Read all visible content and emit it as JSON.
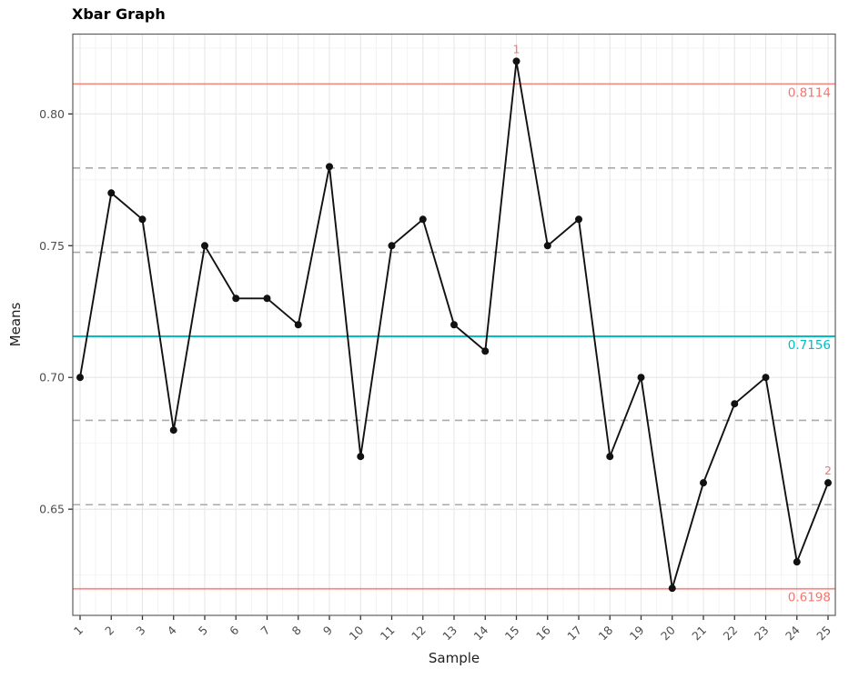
{
  "title": "Xbar Graph",
  "chart_data": {
    "type": "line",
    "subtype": "xbar-control-chart",
    "title": "Xbar Graph",
    "xlabel": "Sample",
    "ylabel": "Means",
    "x_ticks": [
      "1",
      "2",
      "3",
      "4",
      "5",
      "6",
      "7",
      "8",
      "9",
      "10",
      "11",
      "12",
      "13",
      "14",
      "15",
      "16",
      "17",
      "18",
      "19",
      "20",
      "21",
      "22",
      "23",
      "24",
      "25"
    ],
    "x": [
      1,
      2,
      3,
      4,
      5,
      6,
      7,
      8,
      9,
      10,
      11,
      12,
      13,
      14,
      15,
      16,
      17,
      18,
      19,
      20,
      21,
      22,
      23,
      24,
      25
    ],
    "values": [
      0.7,
      0.77,
      0.76,
      0.68,
      0.75,
      0.73,
      0.73,
      0.72,
      0.78,
      0.67,
      0.75,
      0.76,
      0.72,
      0.71,
      0.82,
      0.75,
      0.76,
      0.67,
      0.7,
      0.62,
      0.66,
      0.69,
      0.7,
      0.63,
      0.66
    ],
    "center": 0.7156,
    "ucl": 0.8114,
    "lcl": 0.6198,
    "center_label": "0.7156",
    "ucl_label": "0.8114",
    "lcl_label": "0.6198",
    "sigma_lines": [
      0.7795,
      0.7475,
      0.6837,
      0.6517
    ],
    "y_ticks": [
      {
        "value": 0.65,
        "label": "0.65"
      },
      {
        "value": 0.7,
        "label": "0.70"
      },
      {
        "value": 0.75,
        "label": "0.75"
      },
      {
        "value": 0.8,
        "label": "0.80"
      }
    ],
    "y_minor": [
      0.625,
      0.675,
      0.725,
      0.775,
      0.825
    ],
    "ylim": [
      0.6097,
      0.8303
    ],
    "annotations": [
      {
        "x": 15,
        "y": 0.82,
        "label": "1"
      },
      {
        "x": 25,
        "y": 0.66,
        "label": "2"
      }
    ],
    "grid": true,
    "legend": false,
    "colors": {
      "series": "#111111",
      "limit": "#F8766D",
      "center": "#00BFC4",
      "sigma": "#AAAAAA",
      "grid_major": "#E6E6E6",
      "grid_minor": "#F2F2F2",
      "panel_border": "#5F5F5F",
      "tick": "#333333"
    }
  }
}
